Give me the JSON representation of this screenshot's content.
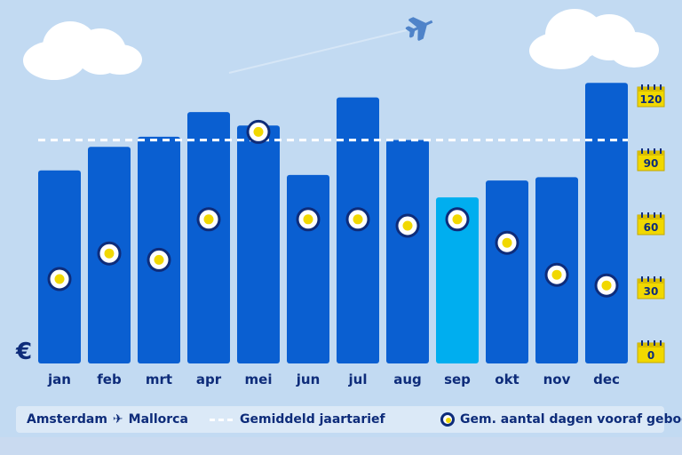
{
  "colors": {
    "background": "#c2daf2",
    "bar": "#0a5fd1",
    "bar_highlight": "#00aeef",
    "average_line": "#ffffff",
    "dot_ring": "#0e2c7a",
    "dot_fill": "#f1d800",
    "text": "#0e2c7a",
    "calendar_icon": "#f1d800"
  },
  "currency_symbol": "€",
  "chart_data": {
    "type": "bar",
    "categories": [
      "jan",
      "feb",
      "mrt",
      "apr",
      "mei",
      "jun",
      "jul",
      "aug",
      "sep",
      "okt",
      "nov",
      "dec"
    ],
    "highlight_category": "sep",
    "series": [
      {
        "name": "Amsterdam → Mallorca",
        "values": [
          172,
          193,
          202,
          224,
          212,
          168,
          237,
          199,
          148,
          163,
          166,
          250
        ]
      }
    ],
    "bar_value_scale": [
      0,
      270
    ],
    "average_price_line": 199,
    "booking_days_series": {
      "name": "Gem. aantal dagen vooraf geboekt",
      "values": [
        35,
        47,
        44,
        63,
        104,
        63,
        63,
        60,
        63,
        52,
        37,
        32
      ],
      "ylim": [
        0,
        120
      ],
      "ticks": [
        0,
        30,
        60,
        90,
        120
      ],
      "axis_side": "right",
      "axis_tick_style": "calendar-icon"
    },
    "bar_axis_visible": false,
    "grid": false
  },
  "legend": {
    "origin": "Amsterdam",
    "route_icon": "plane-icon",
    "destination": "Mallorca",
    "average_line_label": "Gemiddeld jaartarief",
    "dots_label": "Gem. aantal dagen vooraf geboekt"
  }
}
